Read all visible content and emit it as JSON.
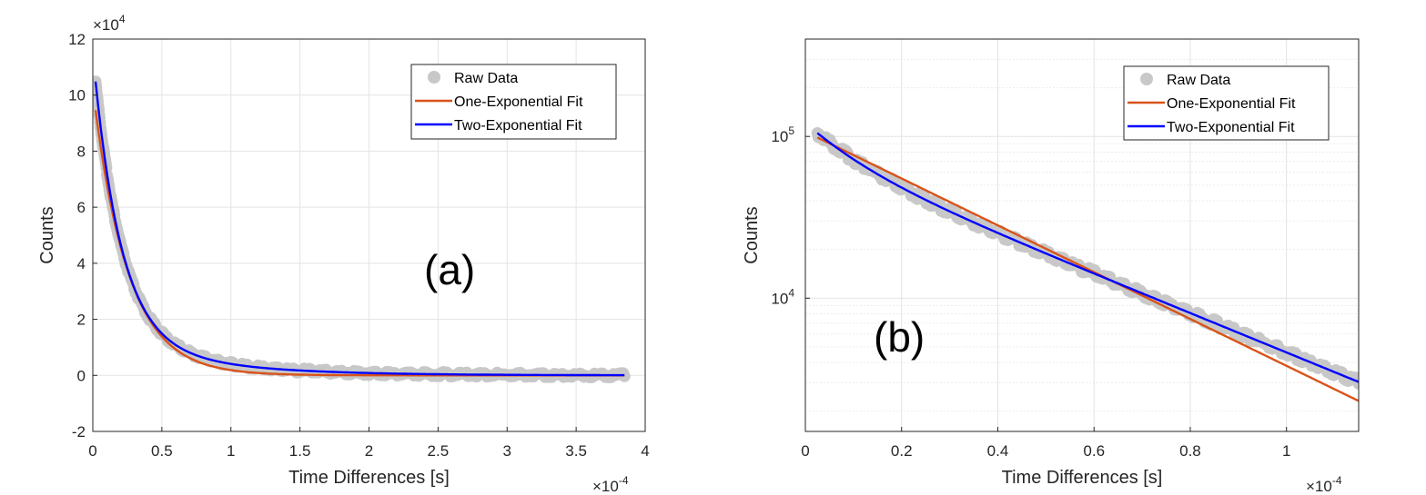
{
  "chart_data": [
    {
      "type": "line",
      "panel_label": "(a)",
      "xlabel": "Time Differences [s]",
      "ylabel": "Counts",
      "x_multiplier": "×10",
      "x_multiplier_exp": "-4",
      "y_multiplier": "×10",
      "y_multiplier_exp": "4",
      "x_unit_scale": 0.0001,
      "y_unit_scale": 10000,
      "xlim": [
        0,
        4
      ],
      "ylim": [
        -2,
        12
      ],
      "xticks": [
        0,
        0.5,
        1,
        1.5,
        2,
        2.5,
        3,
        3.5,
        4
      ],
      "xtick_labels": [
        "0",
        "0.5",
        "1",
        "1.5",
        "2",
        "2.5",
        "3",
        "3.5",
        "4"
      ],
      "yticks": [
        -2,
        0,
        2,
        4,
        6,
        8,
        10,
        12
      ],
      "ytick_labels": [
        "-2",
        "0",
        "2",
        "4",
        "6",
        "8",
        "10",
        "12"
      ],
      "yscale": "linear",
      "grid": true,
      "legend_position": "top-right",
      "series": [
        {
          "name": "Raw Data",
          "style": "markers",
          "color": "#c8c8c8",
          "model": {
            "terms": [
              [
                10.05,
                0.196
              ],
              [
                1.45,
                0.7
              ]
            ]
          },
          "x_range": [
            0.02,
            3.85
          ]
        },
        {
          "name": "One-Exponential Fit",
          "style": "line",
          "color": "#d95319",
          "model": {
            "terms": [
              [
                10.25,
                0.25
              ]
            ]
          },
          "x_range": [
            0.02,
            3.85
          ]
        },
        {
          "name": "Two-Exponential Fit",
          "style": "line",
          "color": "#0000ff",
          "model": {
            "terms": [
              [
                10.05,
                0.196
              ],
              [
                1.45,
                0.7
              ]
            ]
          },
          "x_range": [
            0.02,
            3.85
          ]
        }
      ]
    },
    {
      "type": "line",
      "panel_label": "(b)",
      "xlabel": "Time Differences [s]",
      "ylabel": "Counts",
      "x_multiplier": "×10",
      "x_multiplier_exp": "-4",
      "x_unit_scale": 0.0001,
      "xlim": [
        0,
        1.15
      ],
      "ylim": [
        1500,
        400000
      ],
      "xticks": [
        0,
        0.2,
        0.4,
        0.6,
        0.8,
        1
      ],
      "xtick_labels": [
        "0",
        "0.2",
        "0.4",
        "0.6",
        "0.8",
        "1"
      ],
      "yticks": [
        10000,
        100000
      ],
      "ytick_base": "10",
      "ytick_exponents": [
        "4",
        "5"
      ],
      "yscale": "log",
      "grid": true,
      "legend_position": "top-right",
      "series": [
        {
          "name": "Raw Data",
          "style": "markers",
          "color": "#c8c8c8",
          "model": {
            "terms": [
              [
                76000,
                0.357
              ],
              [
                45000,
                0.09
              ]
            ]
          },
          "x_range": [
            0.025,
            1.15
          ]
        },
        {
          "name": "One-Exponential Fit",
          "style": "line",
          "color": "#d95319",
          "model": {
            "terms": [
              [
                107000,
                0.3
              ]
            ]
          },
          "x_range": [
            0.025,
            1.15
          ]
        },
        {
          "name": "Two-Exponential Fit",
          "style": "line",
          "color": "#0000ff",
          "model": {
            "terms": [
              [
                76000,
                0.357
              ],
              [
                45000,
                0.09
              ]
            ]
          },
          "x_range": [
            0.025,
            1.15
          ]
        }
      ]
    }
  ]
}
